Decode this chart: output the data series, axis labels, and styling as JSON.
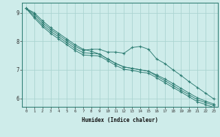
{
  "xlabel": "Humidex (Indice chaleur)",
  "ylabel": "",
  "bg_color": "#ceecea",
  "grid_color": "#aad4d0",
  "line_color": "#2e7d73",
  "xlim": [
    -0.5,
    23.5
  ],
  "ylim": [
    5.7,
    9.35
  ],
  "xticks": [
    0,
    1,
    2,
    3,
    4,
    5,
    6,
    7,
    8,
    9,
    10,
    11,
    12,
    13,
    14,
    15,
    16,
    17,
    18,
    19,
    20,
    21,
    22,
    23
  ],
  "yticks": [
    6,
    7,
    8,
    9
  ],
  "line1": [
    9.15,
    9.0,
    8.72,
    8.48,
    8.28,
    8.08,
    7.88,
    7.72,
    7.65,
    7.55,
    7.38,
    7.22,
    7.1,
    7.05,
    7.0,
    6.95,
    6.82,
    6.68,
    6.52,
    6.35,
    6.18,
    6.02,
    5.9,
    5.8
  ],
  "line2": [
    9.15,
    8.95,
    8.65,
    8.42,
    8.22,
    8.02,
    7.82,
    7.68,
    7.72,
    7.72,
    7.62,
    7.62,
    7.58,
    7.78,
    7.82,
    7.72,
    7.38,
    7.22,
    7.0,
    6.8,
    6.58,
    6.38,
    6.18,
    5.98
  ],
  "line3": [
    9.15,
    8.88,
    8.58,
    8.35,
    8.15,
    7.95,
    7.75,
    7.6,
    7.58,
    7.55,
    7.38,
    7.22,
    7.1,
    7.05,
    7.0,
    6.95,
    6.78,
    6.62,
    6.45,
    6.28,
    6.12,
    5.95,
    5.85,
    5.75
  ],
  "line4": [
    9.15,
    8.82,
    8.52,
    8.28,
    8.08,
    7.88,
    7.68,
    7.52,
    7.5,
    7.48,
    7.32,
    7.15,
    7.02,
    6.98,
    6.92,
    6.88,
    6.72,
    6.55,
    6.38,
    6.22,
    6.05,
    5.88,
    5.78,
    5.68
  ]
}
